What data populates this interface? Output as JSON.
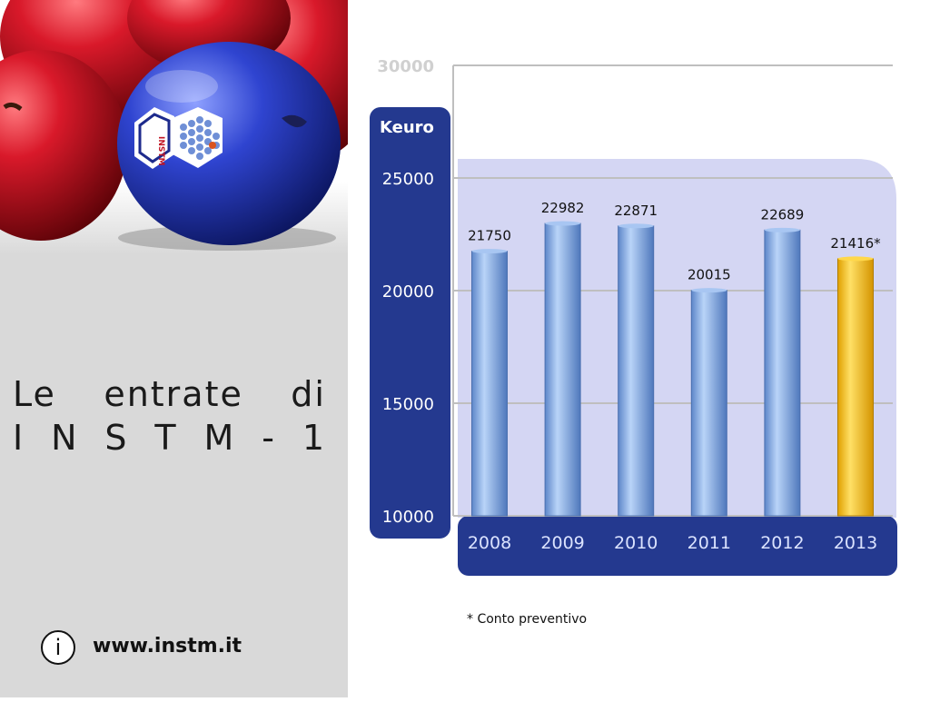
{
  "slide": {
    "title_line1": "Le entrate di",
    "title_line2": "I N S T M - 1",
    "url": "www.instm.it",
    "info_icon": "i",
    "footnote": "* Conto preventivo",
    "logo_text": "INSTM"
  },
  "colors": {
    "left_panel": "#d9d9d9",
    "axis_panel": "#24398f",
    "plot_bg": "#d4d6f3",
    "bar_blue": "#8fb6ea",
    "bar_highlight": "#ffc000",
    "apple_red": "#c21423",
    "apple_blue": "#2b3ec4"
  },
  "chart_data": {
    "type": "bar",
    "unit_label": "Keuro",
    "categories": [
      "2008",
      "2009",
      "2010",
      "2011",
      "2012",
      "2013"
    ],
    "values": [
      21750,
      22982,
      22871,
      20015,
      22689,
      21416
    ],
    "data_labels": [
      "21750",
      "22982",
      "22871",
      "20015",
      "22689",
      "21416*"
    ],
    "highlight_index": 5,
    "ylim": [
      10000,
      30000
    ],
    "yticks": [
      10000,
      15000,
      20000,
      25000,
      30000
    ],
    "ytick_labels": [
      "10000",
      "15000",
      "20000",
      "25000",
      "30000"
    ],
    "grid": true,
    "title": "",
    "xlabel": "",
    "ylabel": "Keuro"
  }
}
